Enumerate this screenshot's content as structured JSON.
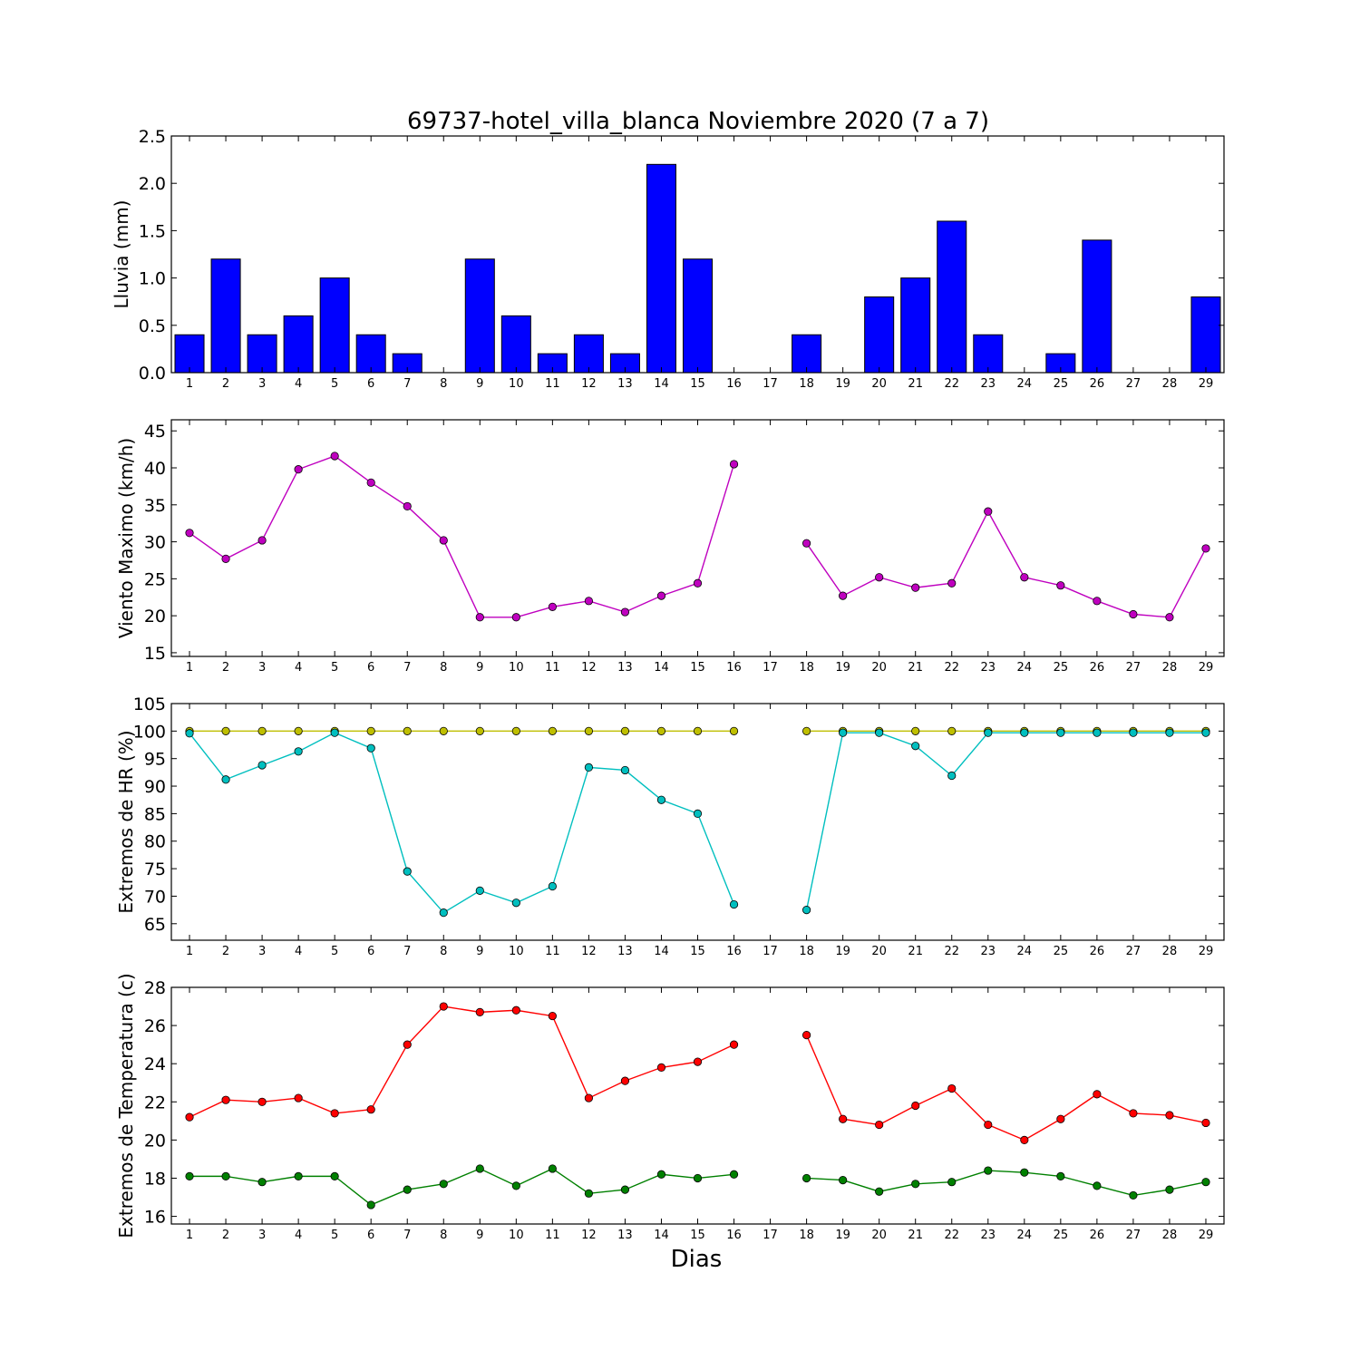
{
  "figure": {
    "title": "69737-hotel_villa_blanca Noviembre 2020  (7 a 7)",
    "xlabel": "Dias",
    "background": "#ffffff"
  },
  "chart_data": [
    {
      "type": "bar",
      "id": "lluvia",
      "ylabel": "Lluvia (mm)",
      "x": [
        1,
        2,
        3,
        4,
        5,
        6,
        7,
        8,
        9,
        10,
        11,
        12,
        13,
        14,
        15,
        16,
        17,
        18,
        19,
        20,
        21,
        22,
        23,
        24,
        25,
        26,
        27,
        28,
        29
      ],
      "xlim": [
        0.5,
        29.5
      ],
      "ylim": [
        0,
        2.5
      ],
      "yticks": [
        0.0,
        0.5,
        1.0,
        1.5,
        2.0,
        2.5
      ],
      "ytick_labels": [
        "0.0",
        "0.5",
        "1.0",
        "1.5",
        "2.0",
        "2.5"
      ],
      "xticks": [
        1,
        2,
        3,
        4,
        5,
        6,
        7,
        8,
        9,
        10,
        11,
        12,
        13,
        14,
        15,
        16,
        17,
        18,
        19,
        20,
        21,
        22,
        23,
        24,
        25,
        26,
        27,
        28,
        29
      ],
      "color": "#0000ff",
      "series": [
        {
          "values": [
            0.4,
            1.2,
            0.4,
            0.6,
            1.0,
            0.4,
            0.2,
            0.0,
            1.2,
            0.6,
            0.2,
            0.4,
            0.2,
            2.2,
            1.2,
            0.0,
            0.0,
            0.4,
            0.0,
            0.8,
            1.0,
            1.6,
            0.4,
            0.0,
            0.2,
            1.4,
            0.0,
            0.0,
            0.8
          ],
          "color": "#0000ff"
        }
      ]
    },
    {
      "type": "line",
      "id": "viento",
      "ylabel": "Viento Maximo (km/h)",
      "x": [
        1,
        2,
        3,
        4,
        5,
        6,
        7,
        8,
        9,
        10,
        11,
        12,
        13,
        14,
        15,
        16,
        17,
        18,
        19,
        20,
        21,
        22,
        23,
        24,
        25,
        26,
        27,
        28,
        29
      ],
      "xlim": [
        0.5,
        29.5
      ],
      "ylim": [
        14.5,
        46.5
      ],
      "yticks": [
        15,
        20,
        25,
        30,
        35,
        40,
        45
      ],
      "ytick_labels": [
        "15",
        "20",
        "25",
        "30",
        "35",
        "40",
        "45"
      ],
      "xticks": [
        1,
        2,
        3,
        4,
        5,
        6,
        7,
        8,
        9,
        10,
        11,
        12,
        13,
        14,
        15,
        16,
        17,
        18,
        19,
        20,
        21,
        22,
        23,
        24,
        25,
        26,
        27,
        28,
        29
      ],
      "series": [
        {
          "values": [
            31.2,
            27.7,
            30.2,
            39.8,
            41.6,
            38.0,
            34.8,
            30.2,
            19.8,
            19.8,
            21.2,
            22.0,
            20.5,
            22.7,
            24.4,
            40.5,
            null,
            29.8,
            22.7,
            25.2,
            23.8,
            24.4,
            34.1,
            25.2,
            24.1,
            22.0,
            20.2,
            19.8,
            29.1
          ],
          "color": "#bf00bf"
        }
      ]
    },
    {
      "type": "line",
      "id": "hr",
      "ylabel": "Extremos de HR (%)",
      "x": [
        1,
        2,
        3,
        4,
        5,
        6,
        7,
        8,
        9,
        10,
        11,
        12,
        13,
        14,
        15,
        16,
        17,
        18,
        19,
        20,
        21,
        22,
        23,
        24,
        25,
        26,
        27,
        28,
        29
      ],
      "xlim": [
        0.5,
        29.5
      ],
      "ylim": [
        62,
        105
      ],
      "yticks": [
        65,
        70,
        75,
        80,
        85,
        90,
        95,
        100,
        105
      ],
      "ytick_labels": [
        "65",
        "70",
        "75",
        "80",
        "85",
        "90",
        "95",
        "100",
        "105"
      ],
      "xticks": [
        1,
        2,
        3,
        4,
        5,
        6,
        7,
        8,
        9,
        10,
        11,
        12,
        13,
        14,
        15,
        16,
        17,
        18,
        19,
        20,
        21,
        22,
        23,
        24,
        25,
        26,
        27,
        28,
        29
      ],
      "series": [
        {
          "values": [
            100,
            100,
            100,
            100,
            100,
            100,
            100,
            100,
            100,
            100,
            100,
            100,
            100,
            100,
            100,
            100,
            null,
            100,
            100,
            100,
            100,
            100,
            100,
            100,
            100,
            100,
            100,
            100,
            100
          ],
          "color": "#bfbf00"
        },
        {
          "values": [
            99.6,
            91.2,
            93.8,
            96.3,
            99.7,
            96.9,
            74.5,
            67.0,
            71.0,
            68.8,
            71.8,
            93.4,
            92.9,
            87.5,
            85.0,
            68.5,
            null,
            67.5,
            99.7,
            99.7,
            97.3,
            91.9,
            99.7,
            99.7,
            99.7,
            99.7,
            99.7,
            99.7,
            99.7
          ],
          "color": "#00bfbf"
        }
      ]
    },
    {
      "type": "line",
      "id": "temp",
      "ylabel": "Extremos de Temperatura (c)",
      "x": [
        1,
        2,
        3,
        4,
        5,
        6,
        7,
        8,
        9,
        10,
        11,
        12,
        13,
        14,
        15,
        16,
        17,
        18,
        19,
        20,
        21,
        22,
        23,
        24,
        25,
        26,
        27,
        28,
        29
      ],
      "xlim": [
        0.5,
        29.5
      ],
      "ylim": [
        15.6,
        28
      ],
      "yticks": [
        16,
        18,
        20,
        22,
        24,
        26,
        28
      ],
      "ytick_labels": [
        "16",
        "18",
        "20",
        "22",
        "24",
        "26",
        "28"
      ],
      "xticks": [
        1,
        2,
        3,
        4,
        5,
        6,
        7,
        8,
        9,
        10,
        11,
        12,
        13,
        14,
        15,
        16,
        17,
        18,
        19,
        20,
        21,
        22,
        23,
        24,
        25,
        26,
        27,
        28,
        29
      ],
      "series": [
        {
          "values": [
            21.2,
            22.1,
            22.0,
            22.2,
            21.4,
            21.6,
            25.0,
            27.0,
            26.7,
            26.8,
            26.5,
            22.2,
            23.1,
            23.8,
            24.1,
            25.0,
            null,
            25.5,
            21.1,
            20.8,
            21.8,
            22.7,
            20.8,
            20.0,
            21.1,
            22.4,
            21.4,
            21.3,
            20.9
          ],
          "color": "#ff0000"
        },
        {
          "values": [
            18.1,
            18.1,
            17.8,
            18.1,
            18.1,
            16.6,
            17.4,
            17.7,
            18.5,
            17.6,
            18.5,
            17.2,
            17.4,
            18.2,
            18.0,
            18.2,
            null,
            18.0,
            17.9,
            17.3,
            17.7,
            17.8,
            18.4,
            18.3,
            18.1,
            17.6,
            17.1,
            17.4,
            17.8
          ],
          "color": "#008000"
        }
      ]
    }
  ]
}
